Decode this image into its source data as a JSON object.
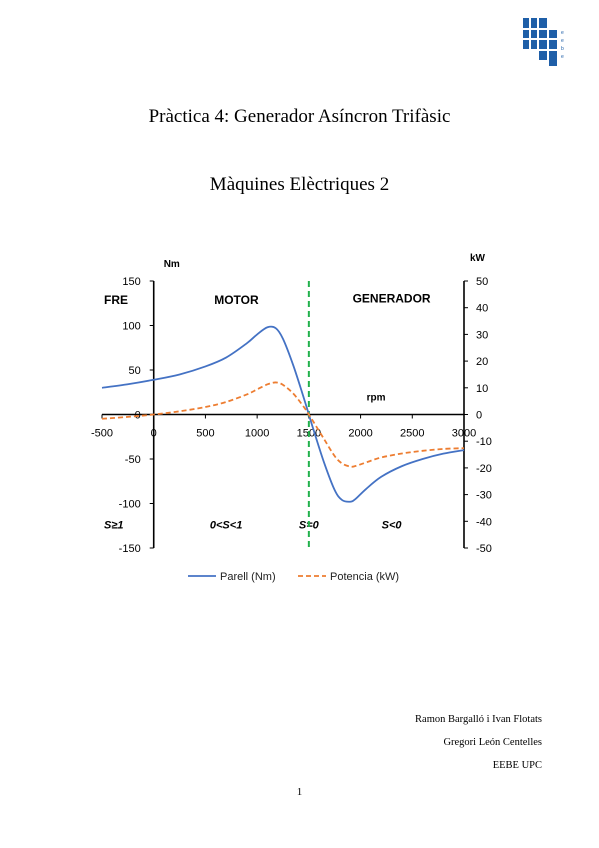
{
  "document": {
    "title": "Pràctica 4: Generador Asíncron Trifàsic",
    "subtitle": "Màquines Elèctriques 2",
    "authors": [
      "Ramon Bargalló i Ivan Flotats",
      "Gregori León Centelles",
      "EEBE UPC"
    ],
    "page_number": "1",
    "logo_letters": [
      "e",
      "e",
      "b",
      "e"
    ]
  },
  "chart_data": {
    "type": "line",
    "x_axis": {
      "label": "rpm",
      "ticks": [
        -500,
        0,
        500,
        1000,
        1500,
        2000,
        2500,
        3000
      ],
      "range": [
        -500,
        3000
      ]
    },
    "y_axis_left": {
      "unit": "Nm",
      "ticks": [
        150,
        100,
        50,
        0,
        -50,
        -100,
        -150
      ],
      "range": [
        -150,
        150
      ]
    },
    "y_axis_right": {
      "unit": "kW",
      "ticks": [
        50,
        40,
        30,
        20,
        10,
        0,
        -10,
        -20,
        -30,
        -40,
        -50
      ],
      "range": [
        -50,
        50
      ]
    },
    "region_labels": {
      "fre": "FRE",
      "motor": "MOTOR",
      "generator": "GENERADOR"
    },
    "slip_labels": {
      "fre": "S≥1",
      "motor": "0<S<1",
      "sync": "S=0",
      "generator": "S<0"
    },
    "sync_line_rpm": 1500,
    "series": [
      {
        "name": "Parell (Nm)",
        "axis": "left",
        "color": "#4472c4",
        "style": "solid",
        "x": [
          -500,
          -250,
          0,
          250,
          500,
          700,
          900,
          1000,
          1100,
          1180,
          1250,
          1350,
          1450,
          1500,
          1550,
          1650,
          1750,
          1820,
          1900,
          1950,
          2050,
          2200,
          2400,
          2600,
          2800,
          3000
        ],
        "y": [
          30,
          34,
          39,
          45,
          54,
          64,
          80,
          90,
          98,
          97,
          85,
          55,
          19,
          0,
          -19,
          -55,
          -85,
          -96,
          -98,
          -95,
          -84,
          -70,
          -58,
          -50,
          -44,
          -40
        ]
      },
      {
        "name": "Potencia (kW)",
        "axis": "right",
        "color": "#ed7d31",
        "style": "dashed",
        "x": [
          -500,
          -250,
          0,
          250,
          500,
          700,
          900,
          1000,
          1100,
          1180,
          1250,
          1350,
          1450,
          1500,
          1550,
          1650,
          1750,
          1820,
          1900,
          1950,
          2050,
          2200,
          2400,
          2600,
          2800,
          3000
        ],
        "y": [
          -1.6,
          -0.9,
          0,
          1.2,
          2.8,
          4.7,
          7.5,
          9.4,
          11.3,
          12.0,
          11.1,
          7.8,
          2.9,
          0,
          -3.1,
          -9.4,
          -15.6,
          -18.3,
          -19.5,
          -19.3,
          -18.0,
          -16.1,
          -14.6,
          -13.6,
          -12.9,
          -12.6
        ]
      }
    ],
    "grid": false,
    "legend_position": "bottom"
  }
}
